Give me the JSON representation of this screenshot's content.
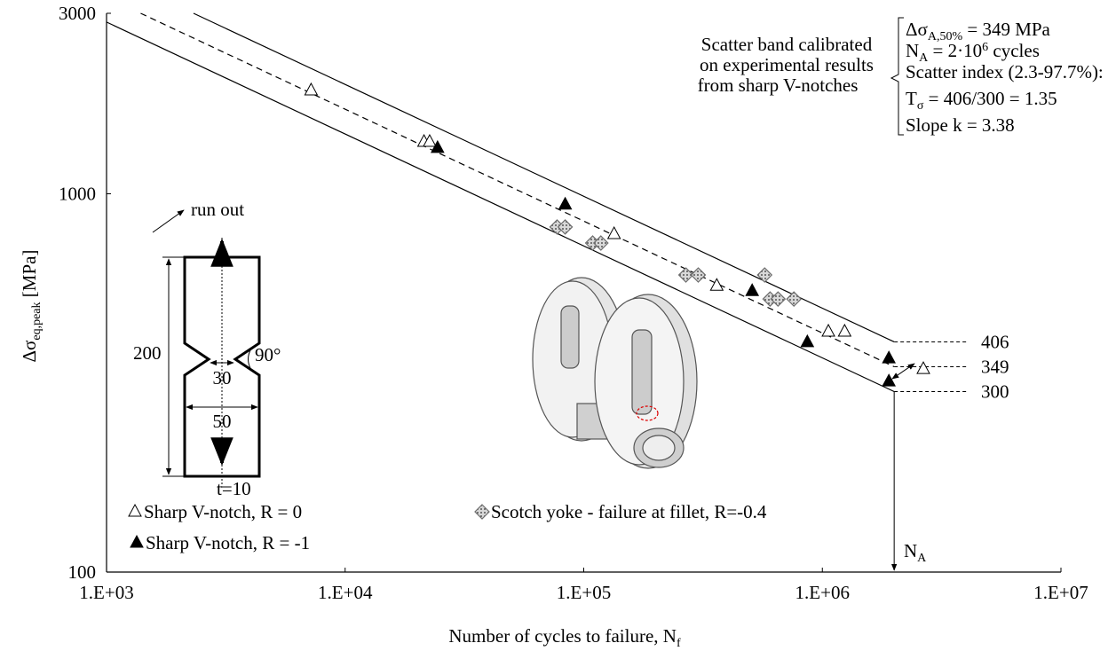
{
  "chart_data": {
    "type": "scatter",
    "x_label": [
      "Number of cycles to failure, N",
      "f"
    ],
    "y_label": [
      "Δσ",
      "eq,peak",
      " [MPa]"
    ],
    "xlog": true,
    "ylog": true,
    "xlim": [
      1000,
      10000000
    ],
    "ylim": [
      100,
      3000
    ],
    "xticks": [
      {
        "value": 1000,
        "label": "1.E+03"
      },
      {
        "value": 10000,
        "label": "1.E+04"
      },
      {
        "value": 100000,
        "label": "1.E+05"
      },
      {
        "value": 1000000,
        "label": "1.E+06"
      },
      {
        "value": 10000000,
        "label": "1.E+07"
      }
    ],
    "yticks": [
      100,
      1000,
      3000
    ],
    "series": [
      {
        "name": "Sharp V-notch, R = 0",
        "marker": "open-triangle",
        "color": "#000000",
        "x": [
          7200,
          21400,
          22600,
          134000,
          361000,
          1060000,
          1240000,
          2650000
        ],
        "values": [
          1876,
          1371,
          1371,
          782,
          571,
          432,
          432,
          344
        ]
      },
      {
        "name": "Sharp V-notch, R = -1",
        "marker": "filled-triangle",
        "color": "#000000",
        "x": [
          24400,
          83600,
          508000,
          865000,
          1900000,
          1900000
        ],
        "values": [
          1321,
          936,
          553,
          405,
          367,
          319
        ]
      },
      {
        "name": "Scotch yoke - failure at fillet, R=-0.4",
        "marker": "diamond",
        "color": "#6e6e6e",
        "x": [
          77300,
          83600,
          109000,
          118000,
          268000,
          302000,
          573000,
          604000,
          652000,
          760000
        ],
        "values": [
          817,
          817,
          741,
          741,
          610,
          610,
          610,
          527,
          527,
          527
        ]
      }
    ],
    "band_lines": [
      {
        "x": [
          2315,
          2000000
        ],
        "values": [
          3000,
          406
        ],
        "dashed": false
      },
      {
        "x": [
          1390,
          2000000
        ],
        "values": [
          3000,
          349
        ],
        "dashed": true
      },
      {
        "x": [
          1000,
          2000000
        ],
        "values": [
          2844,
          300
        ],
        "dashed": false
      }
    ],
    "band_note": [
      "Scatter band calibrated",
      "on experimental results",
      "from sharp V-notches"
    ],
    "band_params": [
      [
        "Δσ",
        "A,50%",
        " = 349 MPa"
      ],
      [
        "N",
        "A",
        " = 2·10",
        "6",
        " cycles"
      ],
      [
        "Scatter index (2.3-97.7%):"
      ],
      [
        "T",
        "σ",
        " = 406/300 = 1.35"
      ],
      [
        "Slope k = 3.38"
      ]
    ],
    "na_label": [
      "N",
      "A"
    ],
    "run_out": "run out",
    "specimen": {
      "height": "200",
      "angle": "90°",
      "net_width": "30",
      "width": "50",
      "thickness": "t=10"
    }
  }
}
